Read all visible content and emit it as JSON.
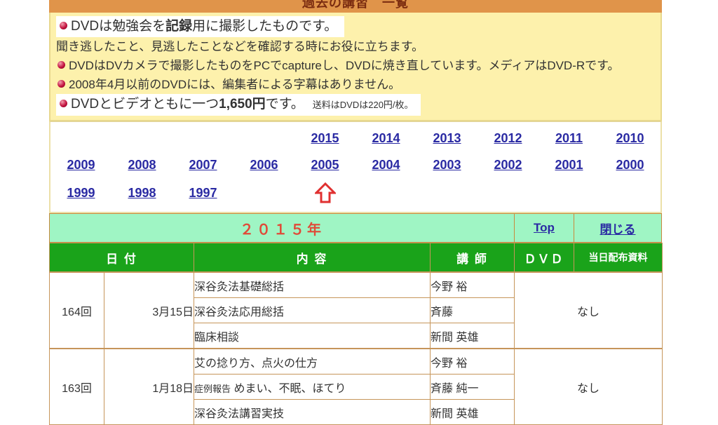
{
  "header": {
    "title": "過去の講習　一覧"
  },
  "notice": {
    "lines": [
      {
        "bullet": true,
        "highlight": true,
        "large": true,
        "segments": [
          {
            "t": "DVDは勉強会を"
          },
          {
            "t": "記録",
            "b": true
          },
          {
            "t": "用に撮影したものです。"
          }
        ]
      },
      {
        "bullet": false,
        "highlight": false,
        "large": false,
        "segments": [
          {
            "t": "聞き逃したこと、見逃したことなどを確認する時にお役に立ちます。"
          }
        ]
      },
      {
        "bullet": true,
        "highlight": false,
        "large": false,
        "segments": [
          {
            "t": "DVDはDVカメラで撮影したものをPCでcaptureし、DVDに焼き直しています。メディアはDVD-Rです。"
          }
        ]
      },
      {
        "bullet": true,
        "highlight": false,
        "large": false,
        "segments": [
          {
            "t": "2008年4月以前のDVDには、編集者による字幕はありません。"
          }
        ]
      },
      {
        "bullet": true,
        "highlight": true,
        "large": true,
        "segments": [
          {
            "t": "DVDとビデオともに一つ"
          },
          {
            "t": "1,650円",
            "b": true
          },
          {
            "t": "です。"
          },
          {
            "t": "送料はDVDは220円/枚。",
            "small": true
          }
        ]
      }
    ]
  },
  "year_nav": {
    "rows": [
      [
        "",
        "",
        "",
        "",
        "2015",
        "2014",
        "2013",
        "2012",
        "2011",
        "2010"
      ],
      [
        "2009",
        "2008",
        "2007",
        "2006",
        "2005",
        "2004",
        "2003",
        "2002",
        "2001",
        "2000"
      ],
      [
        "1999",
        "1998",
        "1997",
        "",
        "",
        "",
        "",
        "",
        "",
        ""
      ]
    ],
    "arrow": {
      "row": 2,
      "col": 4,
      "name": "up-arrow-icon",
      "glyph": "⇧",
      "color": "#e03030"
    }
  },
  "section": {
    "year_title": "２０１５年",
    "top_label": "Top",
    "close_label": "閉じる"
  },
  "table": {
    "headers": {
      "date": "日 付",
      "content": "内 容",
      "lecturer": "講 師",
      "dvd": "ＤＶＤ",
      "handout": "当日配布資料"
    },
    "rows": [
      {
        "no": "164回",
        "date": "3月15日",
        "dvd": "なし",
        "items": [
          {
            "content": "深谷灸法基礎総括",
            "lecturer": "今野 裕"
          },
          {
            "content": "深谷灸法応用総括",
            "lecturer": "斉藤"
          },
          {
            "content": "臨床相談",
            "lecturer": "新間 英雄"
          }
        ]
      },
      {
        "no": "163回",
        "date": "1月18日",
        "dvd": "なし",
        "items": [
          {
            "content": "艾の捻り方、点火の仕方",
            "lecturer": "今野 裕"
          },
          {
            "content_prefix_small": "症例報告",
            "content": " めまい、不眠、ほてり",
            "lecturer": "斉藤 純一"
          },
          {
            "content": "深谷灸法講習実技",
            "lecturer": "新間 英雄"
          }
        ]
      }
    ]
  },
  "colors": {
    "band_orange": "#e0944a",
    "band_text": "#7b2c10",
    "notice_bg": "#fdf1ac",
    "link_blue": "#2a2aa3",
    "arrow_red": "#e03030",
    "mint_green": "#9ff5c4",
    "section_title_red": "#e04a38",
    "table_header_green": "#1aa31a",
    "border_tan": "#c6955a",
    "bullet_red": "#c41440"
  }
}
